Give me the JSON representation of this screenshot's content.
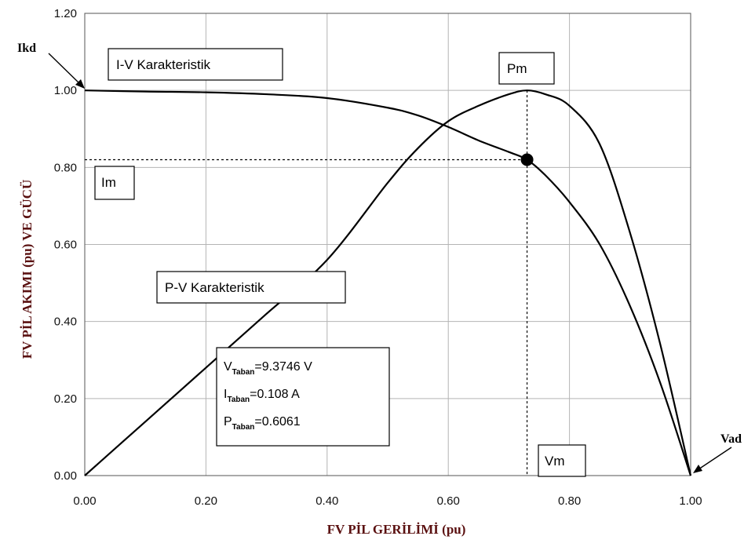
{
  "chart_data": {
    "type": "line",
    "xlabel": "FV PİL GERİLİMİ (pu)",
    "ylabel": "FV PİL AKIMI (pu) VE GÜCÜ",
    "xlim": [
      0,
      1
    ],
    "ylim": [
      0,
      1.2
    ],
    "x_ticks": [
      "0.00",
      "0.20",
      "0.40",
      "0.60",
      "0.80",
      "1.00"
    ],
    "y_ticks": [
      "0.00",
      "0.20",
      "0.40",
      "0.60",
      "0.80",
      "1.00",
      "1.20"
    ],
    "grid": true,
    "series": [
      {
        "name": "I-V Karakteristik",
        "x": [
          0.0,
          0.1,
          0.2,
          0.3,
          0.4,
          0.5,
          0.55,
          0.6,
          0.65,
          0.7,
          0.73,
          0.76,
          0.8,
          0.85,
          0.9,
          0.95,
          1.0
        ],
        "y": [
          1.0,
          0.997,
          0.995,
          0.99,
          0.98,
          0.955,
          0.935,
          0.905,
          0.87,
          0.84,
          0.82,
          0.78,
          0.71,
          0.6,
          0.44,
          0.24,
          0.0
        ]
      },
      {
        "name": "P-V Karakteristik",
        "x": [
          0.0,
          0.1,
          0.2,
          0.3,
          0.4,
          0.5,
          0.55,
          0.6,
          0.65,
          0.7,
          0.73,
          0.76,
          0.8,
          0.85,
          0.9,
          0.95,
          1.0
        ],
        "y": [
          0.0,
          0.14,
          0.28,
          0.42,
          0.56,
          0.76,
          0.85,
          0.92,
          0.96,
          0.99,
          1.0,
          0.99,
          0.96,
          0.86,
          0.63,
          0.34,
          0.0
        ]
      }
    ],
    "mpp": {
      "x": 0.73,
      "y": 0.82
    },
    "labels": {
      "iv": "I-V Karakteristik",
      "pv": "P-V Karakteristik",
      "pm": "Pm",
      "im": "Im",
      "vm": "Vm",
      "ikd": "Ikd",
      "vad": "Vad"
    },
    "info": [
      {
        "sym": "V",
        "sub": "Taban",
        "val": "=9.3746 V"
      },
      {
        "sym": "I",
        "sub": "Taban",
        "val": "=0.108 A"
      },
      {
        "sym": "P",
        "sub": "Taban",
        "val": "=0.6061"
      }
    ],
    "colors": {
      "line": "#000000",
      "grid": "#b4b4b4",
      "axis_title": "#5a1010"
    }
  }
}
